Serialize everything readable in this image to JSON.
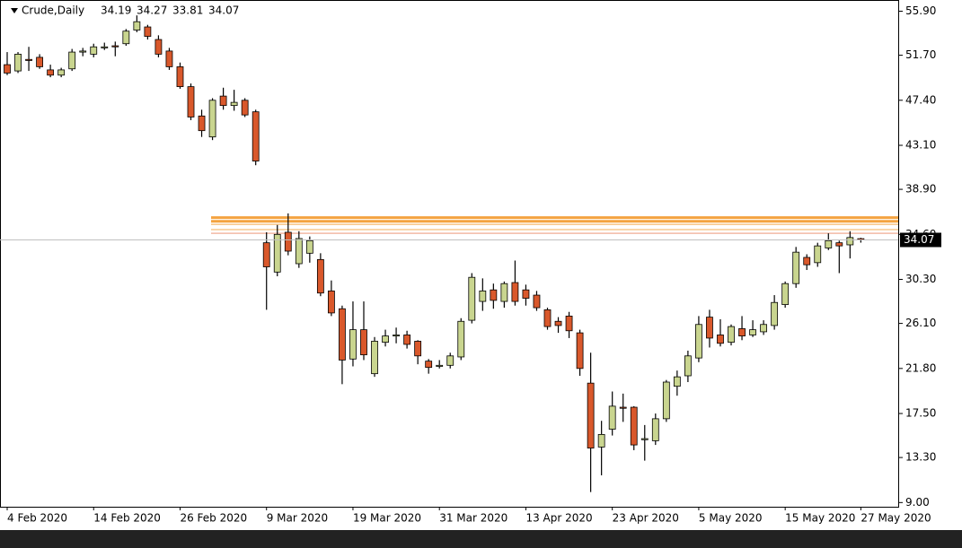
{
  "chart_data": {
    "type": "candlestick",
    "title": "Crude,Daily",
    "categories": [
      "4 Feb 2020",
      null,
      null,
      null,
      null,
      null,
      null,
      null,
      "14 Feb 2020",
      null,
      null,
      null,
      null,
      null,
      null,
      null,
      "26 Feb 2020",
      null,
      null,
      null,
      null,
      null,
      null,
      null,
      "9 Mar 2020",
      null,
      null,
      null,
      null,
      null,
      null,
      null,
      "19 Mar 2020",
      null,
      null,
      null,
      null,
      null,
      null,
      null,
      "31 Mar 2020",
      null,
      null,
      null,
      null,
      null,
      null,
      null,
      "13 Apr 2020",
      null,
      null,
      null,
      null,
      null,
      null,
      null,
      "23 Apr 2020",
      null,
      null,
      null,
      null,
      null,
      null,
      null,
      "5 May 2020",
      null,
      null,
      null,
      null,
      null,
      null,
      null,
      "15 May 2020",
      null,
      null,
      null,
      null,
      null,
      null,
      "27 May 2020"
    ],
    "open": [
      50.8,
      50.2,
      51.3,
      51.5,
      50.3,
      49.8,
      50.4,
      52.0,
      51.8,
      52.5,
      52.6,
      52.8,
      54.1,
      54.4,
      53.2,
      52.1,
      50.6,
      48.7,
      45.9,
      43.9,
      47.8,
      46.9,
      47.4,
      46.3,
      33.8,
      31.0,
      34.8,
      31.8,
      32.8,
      32.2,
      29.2,
      27.5,
      22.7,
      25.5,
      21.3,
      24.3,
      25.0,
      25.0,
      24.4,
      22.5,
      22.1,
      22.1,
      22.9,
      26.4,
      28.2,
      29.3,
      28.2,
      30.0,
      29.3,
      28.8,
      27.4,
      26.3,
      26.8,
      25.2,
      20.4,
      14.3,
      16.0,
      18.1,
      18.1,
      15.0,
      14.9,
      17.0,
      20.1,
      21.1,
      22.8,
      26.7,
      25.0,
      24.3,
      25.6,
      25.0,
      25.3,
      25.9,
      27.9,
      29.9,
      32.4,
      31.9,
      33.3,
      33.8,
      33.6,
      34.19
    ],
    "high": [
      52.0,
      52.0,
      52.5,
      51.8,
      50.8,
      50.5,
      52.3,
      52.4,
      52.8,
      52.9,
      53.0,
      54.2,
      55.5,
      54.6,
      53.6,
      52.4,
      51.0,
      49.0,
      46.5,
      47.6,
      48.6,
      48.4,
      47.6,
      46.5,
      34.8,
      35.5,
      36.6,
      34.9,
      34.4,
      32.8,
      30.2,
      27.8,
      28.2,
      28.2,
      24.8,
      25.5,
      25.7,
      25.4,
      24.5,
      22.7,
      22.6,
      23.3,
      26.6,
      30.9,
      30.4,
      29.9,
      30.1,
      32.1,
      29.8,
      29.2,
      27.6,
      26.7,
      27.2,
      25.5,
      23.3,
      16.8,
      19.6,
      19.4,
      18.2,
      16.4,
      17.5,
      20.7,
      21.6,
      23.5,
      26.8,
      27.4,
      26.5,
      26.0,
      26.8,
      26.4,
      26.4,
      28.8,
      30.1,
      33.4,
      32.7,
      33.8,
      34.7,
      34.0,
      34.9,
      34.27
    ],
    "low": [
      49.8,
      50.0,
      50.2,
      50.4,
      49.6,
      49.6,
      50.2,
      51.6,
      51.5,
      52.2,
      51.6,
      52.6,
      53.9,
      53.2,
      51.5,
      50.3,
      48.5,
      45.5,
      43.9,
      43.6,
      46.5,
      46.4,
      45.8,
      41.2,
      27.4,
      30.6,
      32.6,
      31.4,
      31.9,
      28.7,
      26.8,
      20.3,
      22.0,
      22.6,
      21.0,
      23.9,
      24.2,
      23.7,
      22.2,
      21.3,
      21.8,
      21.8,
      22.6,
      26.1,
      27.3,
      27.5,
      27.6,
      27.8,
      27.8,
      27.3,
      25.5,
      25.2,
      24.7,
      21.1,
      10.0,
      11.6,
      15.4,
      16.7,
      14.0,
      13.0,
      14.5,
      16.7,
      19.2,
      20.5,
      22.4,
      23.8,
      23.9,
      24.0,
      24.5,
      24.8,
      25.0,
      25.5,
      27.6,
      29.5,
      31.2,
      31.5,
      33.1,
      30.9,
      32.3,
      33.81
    ],
    "close": [
      50.0,
      51.8,
      51.2,
      50.6,
      49.8,
      50.3,
      52.0,
      52.1,
      52.5,
      52.5,
      52.5,
      54.0,
      54.9,
      53.5,
      51.8,
      50.6,
      48.7,
      45.8,
      44.5,
      47.4,
      46.9,
      47.2,
      46.0,
      41.6,
      31.5,
      34.6,
      33.0,
      34.2,
      34.0,
      29.0,
      27.1,
      22.6,
      25.5,
      23.1,
      24.4,
      24.9,
      25.0,
      24.1,
      23.0,
      21.9,
      22.1,
      23.0,
      26.3,
      30.5,
      29.2,
      28.3,
      29.9,
      28.2,
      28.5,
      27.6,
      25.8,
      25.9,
      25.4,
      21.8,
      14.2,
      15.5,
      18.2,
      18.0,
      14.5,
      15.1,
      17.0,
      20.5,
      21.0,
      23.0,
      26.0,
      24.7,
      24.2,
      25.8,
      24.9,
      25.5,
      26.0,
      28.1,
      29.9,
      32.9,
      31.7,
      33.5,
      34.0,
      33.5,
      34.3,
      34.07
    ],
    "up_color": "#c9d58f",
    "down_color": "#d9582b",
    "levels": [
      {
        "value": 36.2,
        "color": "#f4a340"
      },
      {
        "value": 35.85,
        "color": "#f4a340"
      },
      {
        "value": 35.55,
        "color": "#f7c88e"
      },
      {
        "value": 35.05,
        "color": "#f7c88e"
      },
      {
        "value": 34.7,
        "color": "#f3b9a5"
      }
    ],
    "ylim": [
      8.6,
      56.8
    ],
    "yticks": [
      {
        "value": 55.9,
        "label": "55.90"
      },
      {
        "value": 51.7,
        "label": "51.70"
      },
      {
        "value": 47.4,
        "label": "47.40"
      },
      {
        "value": 43.1,
        "label": "43.10"
      },
      {
        "value": 38.9,
        "label": "38.90"
      },
      {
        "value": 34.6,
        "label": "34.60"
      },
      {
        "value": 30.3,
        "label": "30.30"
      },
      {
        "value": 26.1,
        "label": "26.10"
      },
      {
        "value": 21.8,
        "label": "21.80"
      },
      {
        "value": 17.5,
        "label": "17.50"
      },
      {
        "value": 13.3,
        "label": "13.30"
      },
      {
        "value": 9.0,
        "label": "9.00"
      }
    ]
  }
}
